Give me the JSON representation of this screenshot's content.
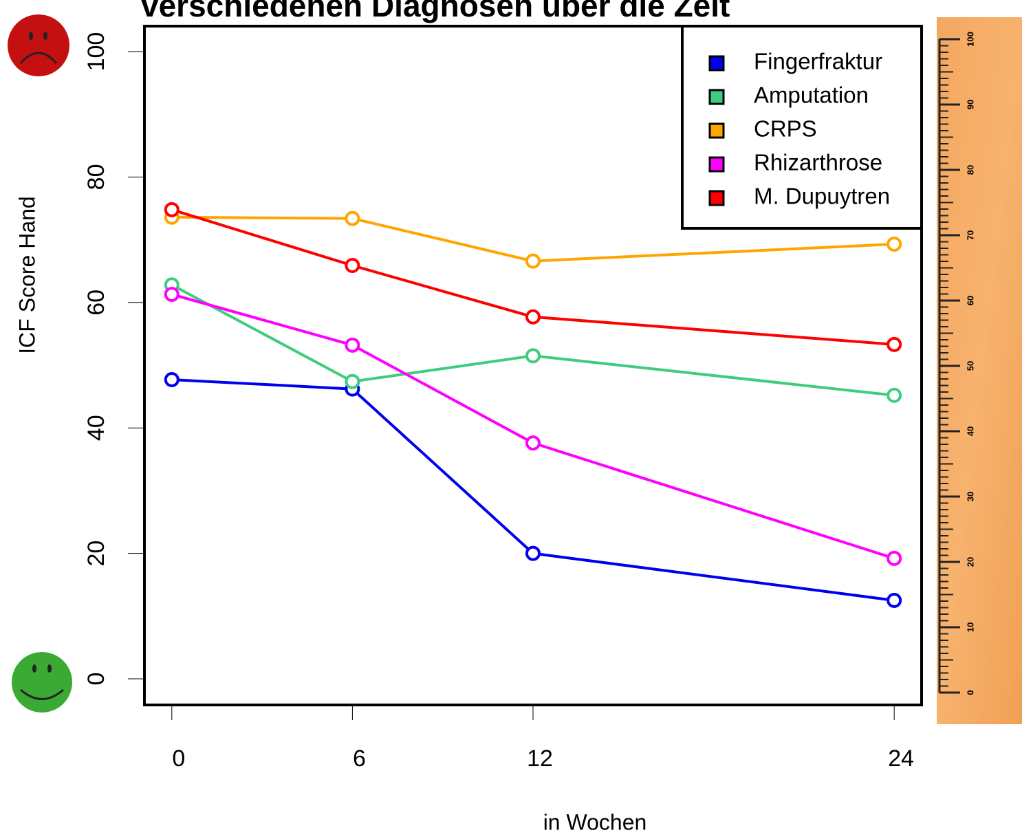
{
  "chart_data": {
    "type": "line",
    "title": "verschiedenen Diagnosen über die Zeit",
    "x_label": "in Wochen",
    "y_label": "ICF Score Hand",
    "x": [
      0,
      6,
      12,
      24
    ],
    "series": [
      {
        "name": "Fingerfraktur",
        "color": "#0000ee",
        "values": [
          47.7,
          46.2,
          20.0,
          12.5
        ]
      },
      {
        "name": "Amputation",
        "color": "#3fcc7e",
        "values": [
          62.8,
          47.4,
          51.5,
          45.2
        ]
      },
      {
        "name": "CRPS",
        "color": "#ffa500",
        "values": [
          73.6,
          73.4,
          66.6,
          69.3
        ]
      },
      {
        "name": "Rhizarthrose",
        "color": "#ff00ff",
        "values": [
          61.3,
          53.2,
          37.6,
          19.2
        ]
      },
      {
        "name": "M. Dupuytren",
        "color": "#ff0000",
        "values": [
          74.8,
          65.9,
          57.7,
          53.3
        ]
      }
    ],
    "xlim": [
      -0.91,
      24.91
    ],
    "ylim": [
      -4.17,
      104.06
    ],
    "xticks": [
      0,
      6,
      12,
      24
    ],
    "yticks": [
      0,
      20,
      40,
      60,
      80,
      100
    ],
    "legend": "top-right",
    "ruler": {
      "lim": [
        0,
        100
      ],
      "ticks": [
        0,
        10,
        20,
        30,
        40,
        50,
        60,
        70,
        80,
        90,
        100
      ]
    }
  }
}
